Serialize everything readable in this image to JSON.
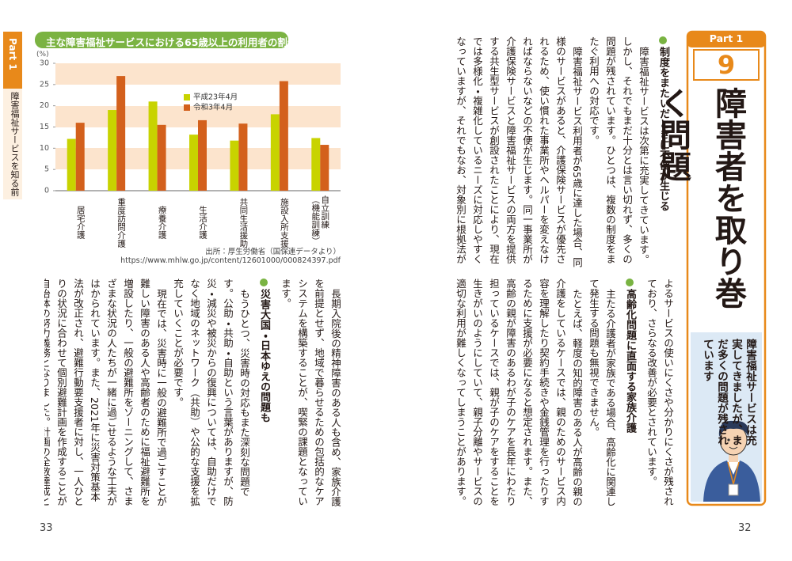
{
  "sidebar": {
    "part": "Part 1",
    "title": "障害福祉サービスを知る前に"
  },
  "chart_data": {
    "type": "bar",
    "title": "主な障害福祉サービスにおける65歳以上の利用者の割合",
    "y_label": "(%)",
    "categories": [
      "居宅介護",
      "重度訪問介護",
      "療養介護",
      "生活介護",
      "共同生活援助",
      "施設入所支援",
      "自立訓練（機能訓練）"
    ],
    "series": [
      {
        "name": "平成23年4月",
        "color": "#c8d300",
        "values": [
          12.2,
          19,
          21,
          13.2,
          11.8,
          18,
          12.4
        ]
      },
      {
        "name": "令和3年4月",
        "color": "#d3601c",
        "values": [
          16,
          27,
          15.5,
          16.6,
          15.8,
          25.8,
          10.8
        ]
      }
    ],
    "ylim": [
      0,
      30
    ],
    "yticks": [
      0,
      5,
      10,
      15,
      20,
      25,
      30
    ],
    "legend": "top"
  },
  "source": {
    "text": "出所：厚生労働省（国保連データより）",
    "url": "https://www.mhlw.go.jp/content/12601000/000824397.pdf"
  },
  "left_page": {
    "page_number": 33,
    "continued": "長期入院後の精神障害のある人も含め、家族介護を前提とせず、地域で暮らせるための包括的なケアシステムを構築することが、喫緊の課題となっています。",
    "heading": "災害大国・日本ゆえの問題も",
    "paragraphs": [
      "もうひとつ、災害時の対応もまた深刻な問題です。公助・共助・自助という言葉がありますが、防災・減災や被災からの復興については、自助だけでなく地域のネットワーク（共助）や公的な支援を拡充していくことが必要です。",
      "現在では、災害時に一般の避難所で過ごすことが難しい障害のある人や高齢者のために福祉避難所を増設したり、一般の避難所をゾーニングして、さまざまな状況の人たちが一緒に過ごせるような工夫がはかられています。また、2021年に災害対策基本法が改正され、避難行動要支援者に対し、一人ひとりの状況に合わせて個別避難計画を作成することが自治体の努力義務となりました。計画の全数達成と計画を継続的に修正して役立てていくことが課題となっています。"
    ]
  },
  "right_page": {
    "page_number": 32,
    "part": "Part 1",
    "number": "9",
    "title": "障害者を取り巻く問題",
    "callout": "障害福祉サービスは充実してきましたが、まだ多くの問題が残されています",
    "top": {
      "heading": "制度をまたいだときに不便が生じる",
      "paragraphs": [
        "障害福祉サービスは次第に充実してきています。しかし、それでもまだ十分とは言い切れず、多くの問題が残されています。ひとつは、複数の制度をまたぐ利用への対応です。",
        "障害福祉サービス利用者が65歳に達した場合、同様のサービスがあると、介護保険サービスが優先されるため、使い慣れた事業所やヘルパーを変えなければならないなどの不便が生じます。同一事業所が介護保険サービスと障害福祉サービスの両方を提供する共生型サービスが創設されたことにより、現在では多様化・複雑化しているニーズに対応しやすくなっていますが、それでもなお、対象別に根拠法が分かれていることに"
      ]
    },
    "bottom": {
      "continued": "よるサービスの使いにくさや分かりにくさが残されており、さらなる改善が必要とされています。",
      "heading": "高齢化問題に直面する家族介護",
      "paragraphs": [
        "主たる介護者が家族である場合、高齢化に関連して発生する問題も無視できません。",
        "たとえば、軽度の知的障害のある人が高齢の親の介護をしているケースでは、親のためのサービス内容を理解したり契約手続きや金銭管理を行ったりするために支援が必要になると想定されます。また、高齢の親が障害のあるわが子のケアを長年にわたり担っているケースでは、親が子のケアをすることを生きがいのようにしていて、親子分離やサービスの適切な利用が難しくなってしまうことがあります。"
      ]
    }
  }
}
